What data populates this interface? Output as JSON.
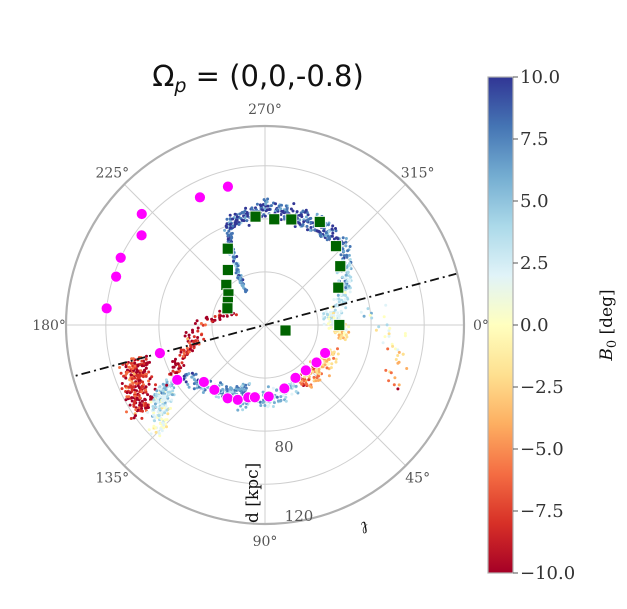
{
  "chart_data": {
    "type": "scatter",
    "projection": "polar",
    "title": "Ω_p = (0,0,-0.8)",
    "title_symbol": "Ω",
    "title_sub": "p",
    "title_rest": " = (0,0,-0.8)",
    "angular_ticks": [
      {
        "deg": 0,
        "label": "0°"
      },
      {
        "deg": 45,
        "label": "45°"
      },
      {
        "deg": 90,
        "label": "90°"
      },
      {
        "deg": 135,
        "label": "135°"
      },
      {
        "deg": 180,
        "label": "180°"
      },
      {
        "deg": 225,
        "label": "225°"
      },
      {
        "deg": 270,
        "label": "270°"
      },
      {
        "deg": 315,
        "label": "315°"
      }
    ],
    "radial_grid": [
      40,
      80,
      120
    ],
    "radial_labels": [
      "80",
      "120"
    ],
    "rlim": [
      0,
      150
    ],
    "ylabel": "d [kpc]",
    "angle_label": "ℓ",
    "colorbar": {
      "label": "B",
      "label_sub": "0",
      "label_unit": " [deg]",
      "min": -10.0,
      "max": 10.0,
      "ticks": [
        "10.0",
        "7.5",
        "5.0",
        "2.5",
        "0.0",
        "−2.5",
        "−5.0",
        "−7.5",
        "−10.0"
      ],
      "colors": [
        "#a50026",
        "#d73027",
        "#f46d43",
        "#fdae61",
        "#fee090",
        "#ffffbf",
        "#e0f3f8",
        "#abd9e9",
        "#74add1",
        "#4575b4",
        "#313695"
      ]
    },
    "orbital_plane_line": {
      "angle_deg": 345,
      "style": "dash-dot",
      "color": "#111111"
    },
    "series": [
      {
        "name": "magenta-markers",
        "marker": "circle",
        "color": "#ff00ff",
        "points": [
          {
            "l": 222,
            "d": 125
          },
          {
            "l": 216,
            "d": 115
          },
          {
            "l": 205,
            "d": 120
          },
          {
            "l": 198,
            "d": 118
          },
          {
            "l": 186,
            "d": 120
          },
          {
            "l": 165,
            "d": 82
          },
          {
            "l": 148,
            "d": 78
          },
          {
            "l": 137,
            "d": 63
          },
          {
            "l": 128,
            "d": 62
          },
          {
            "l": 117,
            "d": 62
          },
          {
            "l": 110,
            "d": 60
          },
          {
            "l": 103,
            "d": 56
          },
          {
            "l": 98,
            "d": 55
          },
          {
            "l": 87,
            "d": 54
          },
          {
            "l": 73,
            "d": 50
          },
          {
            "l": 60,
            "d": 46
          },
          {
            "l": 48,
            "d": 46
          },
          {
            "l": 36,
            "d": 48
          },
          {
            "l": 25,
            "d": 50
          },
          {
            "l": 255,
            "d": 108
          },
          {
            "l": 243,
            "d": 108
          }
        ]
      },
      {
        "name": "green-squares",
        "marker": "square",
        "color": "#006400",
        "points": [
          {
            "l": 265,
            "d": 82
          },
          {
            "l": 275,
            "d": 80
          },
          {
            "l": 284,
            "d": 82
          },
          {
            "l": 298,
            "d": 88
          },
          {
            "l": 312,
            "d": 80
          },
          {
            "l": 322,
            "d": 72
          },
          {
            "l": 333,
            "d": 62
          },
          {
            "l": 0,
            "d": 56
          },
          {
            "l": 15,
            "d": 16
          },
          {
            "l": 244,
            "d": 64
          },
          {
            "l": 236,
            "d": 50
          },
          {
            "l": 226,
            "d": 42
          },
          {
            "l": 220,
            "d": 36
          },
          {
            "l": 212,
            "d": 33
          },
          {
            "l": 204,
            "d": 31
          }
        ]
      }
    ]
  }
}
